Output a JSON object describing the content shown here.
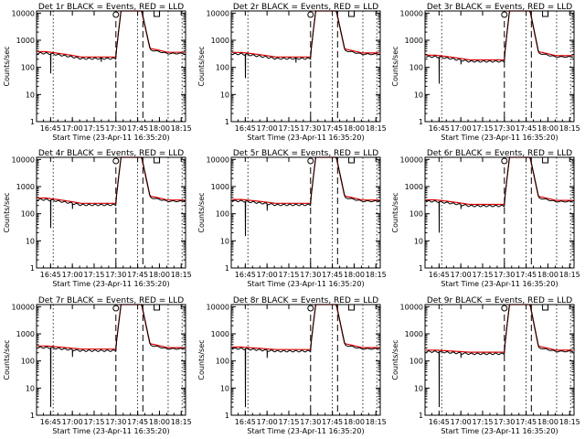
{
  "chart_data": [
    {
      "type": "line",
      "title": "Det 1r BLACK = Events, RED = LLD",
      "xlabel": "Start Time (23-Apr-11 16:35:20)",
      "ylabel": "Counts/sec",
      "yscale": "log",
      "ylim": [
        1,
        12000
      ],
      "xticks": [
        "16:45",
        "17:00",
        "17:15",
        "17:30",
        "17:45",
        "18:00",
        "18:15"
      ],
      "yticks": [
        "1",
        "10",
        "100",
        "1000",
        "10000"
      ],
      "base": 360,
      "drop": 230,
      "dips": [
        [
          16.75,
          60
        ],
        [
          17.33,
          160
        ]
      ],
      "flare_start": 17.5,
      "flare_end": 17.81,
      "post": 360
    },
    {
      "type": "line",
      "title": "Det 2r BLACK = Events, RED = LLD",
      "xlabel": "Start Time (23-Apr-11 16:35:20)",
      "ylabel": "Counts/sec",
      "yscale": "log",
      "ylim": [
        1,
        12000
      ],
      "xticks": [
        "16:45",
        "17:00",
        "17:15",
        "17:30",
        "17:45",
        "18:00",
        "18:15"
      ],
      "yticks": [
        "1",
        "10",
        "100",
        "1000",
        "10000"
      ],
      "base": 340,
      "drop": 230,
      "dips": [
        [
          16.75,
          40
        ],
        [
          17.33,
          150
        ]
      ],
      "flare_start": 17.5,
      "flare_end": 17.81,
      "post": 340
    },
    {
      "type": "line",
      "title": "Det 3r BLACK = Events, RED = LLD",
      "xlabel": "Start Time (23-Apr-11 16:35:20)",
      "ylabel": "Counts/sec",
      "yscale": "log",
      "ylim": [
        1,
        12000
      ],
      "xticks": [
        "16:45",
        "17:00",
        "17:15",
        "17:30",
        "17:45",
        "18:00",
        "18:15"
      ],
      "yticks": [
        "1",
        "10",
        "100",
        "1000",
        "10000"
      ],
      "base": 270,
      "drop": 180,
      "dips": [
        [
          16.75,
          25
        ],
        [
          17.0,
          130
        ]
      ],
      "flare_start": 17.5,
      "flare_end": 17.81,
      "post": 270
    },
    {
      "type": "line",
      "title": "Det 4r BLACK = Events, RED = LLD",
      "xlabel": "Start Time (23-Apr-11 16:35:20)",
      "ylabel": "Counts/sec",
      "yscale": "log",
      "ylim": [
        1,
        12000
      ],
      "xticks": [
        "16:45",
        "17:00",
        "17:15",
        "17:30",
        "17:45",
        "18:00",
        "18:15"
      ],
      "yticks": [
        "1",
        "10",
        "100",
        "1000",
        "10000"
      ],
      "base": 360,
      "drop": 230,
      "dips": [
        [
          16.75,
          30
        ],
        [
          17.0,
          150
        ]
      ],
      "flare_start": 17.5,
      "flare_end": 17.81,
      "post": 320
    },
    {
      "type": "line",
      "title": "Det 5r BLACK = Events, RED = LLD",
      "xlabel": "Start Time (23-Apr-11 16:35:20)",
      "ylabel": "Counts/sec",
      "yscale": "log",
      "ylim": [
        1,
        12000
      ],
      "xticks": [
        "16:45",
        "17:00",
        "17:15",
        "17:30",
        "17:45",
        "18:00",
        "18:15"
      ],
      "yticks": [
        "1",
        "10",
        "100",
        "1000",
        "10000"
      ],
      "base": 320,
      "drop": 230,
      "dips": [
        [
          16.75,
          15
        ],
        [
          17.0,
          130
        ]
      ],
      "flare_start": 17.5,
      "flare_end": 17.81,
      "post": 320
    },
    {
      "type": "line",
      "title": "Det 6r BLACK = Events, RED = LLD",
      "xlabel": "Start Time (23-Apr-11 16:35:20)",
      "ylabel": "Counts/sec",
      "yscale": "log",
      "ylim": [
        1,
        12000
      ],
      "xticks": [
        "16:45",
        "17:00",
        "17:15",
        "17:30",
        "17:45",
        "18:00",
        "18:15"
      ],
      "yticks": [
        "1",
        "10",
        "100",
        "1000",
        "10000"
      ],
      "base": 310,
      "drop": 210,
      "dips": [
        [
          16.75,
          20
        ],
        [
          17.0,
          150
        ]
      ],
      "flare_start": 17.5,
      "flare_end": 17.81,
      "post": 310
    },
    {
      "type": "line",
      "title": "Det 7r BLACK = Events, RED = LLD",
      "xlabel": "Start Time (23-Apr-11 16:35:20)",
      "ylabel": "Counts/sec",
      "yscale": "log",
      "ylim": [
        1,
        12000
      ],
      "xticks": [
        "16:45",
        "17:00",
        "17:15",
        "17:30",
        "17:45",
        "18:00",
        "18:15"
      ],
      "yticks": [
        "1",
        "10",
        "100",
        "1000",
        "10000"
      ],
      "base": 340,
      "drop": 260,
      "dips": [
        [
          16.75,
          2
        ],
        [
          17.0,
          140
        ]
      ],
      "flare_start": 17.5,
      "flare_end": 17.81,
      "post": 310
    },
    {
      "type": "line",
      "title": "Det 8r BLACK = Events, RED = LLD",
      "xlabel": "Start Time (23-Apr-11 16:35:20)",
      "ylabel": "Counts/sec",
      "yscale": "log",
      "ylim": [
        1,
        12000
      ],
      "xticks": [
        "16:45",
        "17:00",
        "17:15",
        "17:30",
        "17:45",
        "18:00",
        "18:15"
      ],
      "yticks": [
        "1",
        "10",
        "100",
        "1000",
        "10000"
      ],
      "base": 310,
      "drop": 250,
      "dips": [
        [
          16.75,
          2
        ],
        [
          17.0,
          130
        ]
      ],
      "flare_start": 17.5,
      "flare_end": 17.81,
      "post": 310
    },
    {
      "type": "line",
      "title": "Det 9r BLACK = Events, RED = LLD",
      "xlabel": "Start Time (23-Apr-11 16:35:20)",
      "ylabel": "Counts/sec",
      "yscale": "log",
      "ylim": [
        1,
        12000
      ],
      "xticks": [
        "16:45",
        "17:00",
        "17:15",
        "17:30",
        "17:45",
        "18:00",
        "18:15"
      ],
      "yticks": [
        "1",
        "10",
        "100",
        "1000",
        "10000"
      ],
      "base": 240,
      "drop": 200,
      "dips": [
        [
          16.75,
          2
        ],
        [
          17.0,
          130
        ]
      ],
      "flare_start": 17.5,
      "flare_end": 17.81,
      "post": 250
    }
  ],
  "colors": {
    "events": "#000000",
    "lld": "#dd0000"
  }
}
